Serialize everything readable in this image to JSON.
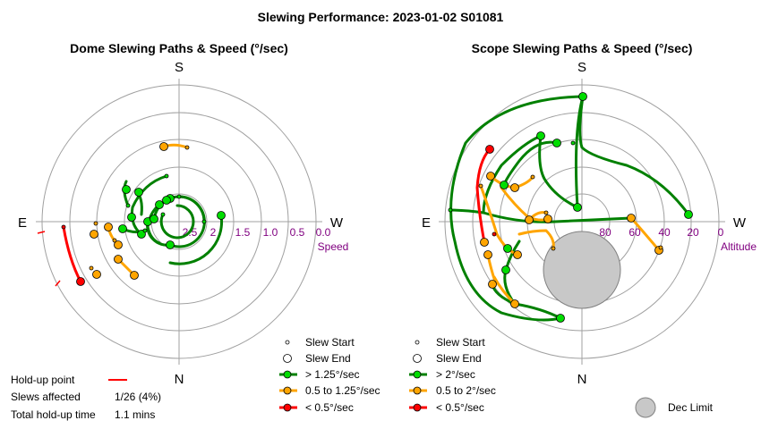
{
  "title": "Slewing Performance: 2023-01-02 S01081",
  "colors": {
    "fast": "#008000",
    "medium": "#ffa500",
    "slow": "#ff0000",
    "grid": "#a0a0a0",
    "tick": "#800080",
    "dec_limit": "#c8c8c8"
  },
  "dome": {
    "subtitle": "Dome Slewing Paths & Speed (°/sec)",
    "cardinals": {
      "s": "S",
      "n": "N",
      "e": "E",
      "w": "W"
    },
    "axis_name": "Speed",
    "tick_labels": [
      "2.5",
      "2",
      "1.5",
      "1.0",
      "0.5",
      "0.0"
    ],
    "legend": [
      {
        "label": "Slew Start",
        "icon": "small-circle"
      },
      {
        "label": "Slew End",
        "icon": "large-circle"
      },
      {
        "label": "> 1.25°/sec",
        "icon": "fast-line"
      },
      {
        "label": "0.5 to 1.25°/sec",
        "icon": "medium-line"
      },
      {
        "label": "< 0.5°/sec",
        "icon": "slow-line"
      }
    ],
    "info": {
      "holdup_label": "Hold-up point",
      "slews_affected_label": "Slews affected",
      "slews_affected_value": "1/26 (4%)",
      "total_holdup_label": "Total hold-up time",
      "total_holdup_value": "1.1 mins"
    }
  },
  "scope": {
    "subtitle": "Scope Slewing Paths & Speed (°/sec)",
    "cardinals": {
      "s": "S",
      "n": "N",
      "e": "E",
      "w": "W"
    },
    "axis_name": "Altitude",
    "tick_labels": [
      "80",
      "60",
      "40",
      "20",
      "0"
    ],
    "legend": [
      {
        "label": "Slew Start",
        "icon": "small-circle"
      },
      {
        "label": "Slew End",
        "icon": "large-circle"
      },
      {
        "label": "> 2°/sec",
        "icon": "fast-line"
      },
      {
        "label": "0.5 to 2°/sec",
        "icon": "medium-line"
      },
      {
        "label": "< 0.5°/sec",
        "icon": "slow-line"
      }
    ],
    "dec_limit_label": "Dec Limit"
  },
  "chart_data": [
    {
      "type": "polar",
      "panel": "dome",
      "title": "Dome Slewing Paths & Speed (°/sec)",
      "radial_axis": "Speed",
      "radial_ticks": [
        2.5,
        2,
        1.5,
        1.0,
        0.5,
        0.0
      ],
      "slews": [
        {
          "speed": "fast",
          "points": [
            [
              200,
              3.0
            ],
            [
              212,
              3.0
            ],
            [
              230,
              3.0
            ],
            [
              255,
              2.6
            ]
          ]
        },
        {
          "speed": "fast",
          "points": [
            [
              250,
              1.3
            ],
            [
              270,
              1.25
            ],
            [
              290,
              1.3
            ]
          ]
        },
        {
          "speed": "fast",
          "points": [
            [
              250,
              1.55
            ],
            [
              270,
              1.5
            ],
            [
              290,
              1.55
            ]
          ]
        },
        {
          "speed": "fast",
          "points": [
            [
              205,
              1.1
            ],
            [
              270,
              1.05
            ],
            [
              340,
              1.1
            ]
          ]
        },
        {
          "speed": "fast",
          "points": [
            [
              300,
              1.25
            ],
            [
              340,
              1.5
            ],
            [
              20,
              1.4
            ]
          ]
        },
        {
          "speed": "fast",
          "points": [
            [
              270,
              1.25
            ],
            [
              300,
              1.15
            ],
            [
              330,
              1.0
            ]
          ]
        },
        {
          "speed": "fast",
          "points": [
            [
              150,
              0.9
            ],
            [
              170,
              1.6
            ],
            [
              190,
              2.0
            ]
          ]
        },
        {
          "speed": "fast",
          "points": [
            [
              130,
              2.1
            ],
            [
              145,
              1.9
            ]
          ]
        },
        {
          "speed": "fast",
          "points": [
            [
              100,
              1.0
            ],
            [
              120,
              1.1
            ],
            [
              140,
              1.1
            ]
          ]
        },
        {
          "speed": "medium",
          "points": [
            [
              165,
              2.45
            ],
            [
              180,
              2.5
            ],
            [
              200,
              2.5
            ]
          ]
        },
        {
          "speed": "medium",
          "points": [
            [
              70,
              3.0
            ],
            [
              65,
              3.0
            ]
          ]
        },
        {
          "speed": "medium",
          "points": [
            [
              50,
              3.2
            ],
            [
              45,
              3.2
            ]
          ]
        },
        {
          "speed": "slow",
          "points": [
            [
              85,
              4.0
            ],
            [
              80,
              4.15
            ],
            [
              60,
              4.15
            ],
            [
              47,
              4.15
            ]
          ]
        }
      ],
      "holdup_points": [
        [
          82,
          4.4
        ],
        [
          43,
          4.6
        ]
      ]
    },
    {
      "type": "polar",
      "panel": "scope",
      "title": "Scope Slewing Paths & Speed (°/sec)",
      "radial_axis": "Altitude",
      "radial_ticks": [
        80,
        60,
        40,
        20,
        0
      ],
      "slews": [
        {
          "speed": "fast",
          "points": [
            [
              180,
              50
            ],
            [
              200,
              30
            ],
            [
              220,
              20
            ],
            [
              240,
              15
            ],
            [
              260,
              12
            ],
            [
              290,
              18
            ]
          ]
        },
        {
          "speed": "fast",
          "points": [
            [
              180,
              50
            ],
            [
              160,
              30
            ],
            [
              130,
              12
            ],
            [
              100,
              5
            ],
            [
              80,
              5
            ],
            [
              60,
              15
            ],
            [
              30,
              25
            ]
          ]
        },
        {
          "speed": "fast",
          "points": [
            [
              290,
              20
            ],
            [
              275,
              40
            ],
            [
              268,
              60
            ],
            [
              270,
              80
            ]
          ]
        },
        {
          "speed": "fast",
          "points": [
            [
              150,
              60
            ],
            [
              120,
              45
            ],
            [
              95,
              40
            ],
            [
              80,
              35
            ],
            [
              60,
              30
            ]
          ]
        },
        {
          "speed": "medium",
          "points": [
            [
              125,
              45
            ],
            [
              115,
              55
            ],
            [
              100,
              60
            ],
            [
              90,
              70
            ]
          ]
        },
        {
          "speed": "medium",
          "points": [
            [
              70,
              60
            ],
            [
              60,
              55
            ],
            [
              50,
              50
            ]
          ]
        },
        {
          "speed": "slow",
          "points": [
            [
              130,
              40
            ],
            [
              110,
              30
            ],
            [
              95,
              35
            ],
            [
              85,
              40
            ]
          ]
        }
      ],
      "dec_limit": {
        "azimuth": 0,
        "altitude_center": 60,
        "radius_deg": 15
      }
    }
  ]
}
